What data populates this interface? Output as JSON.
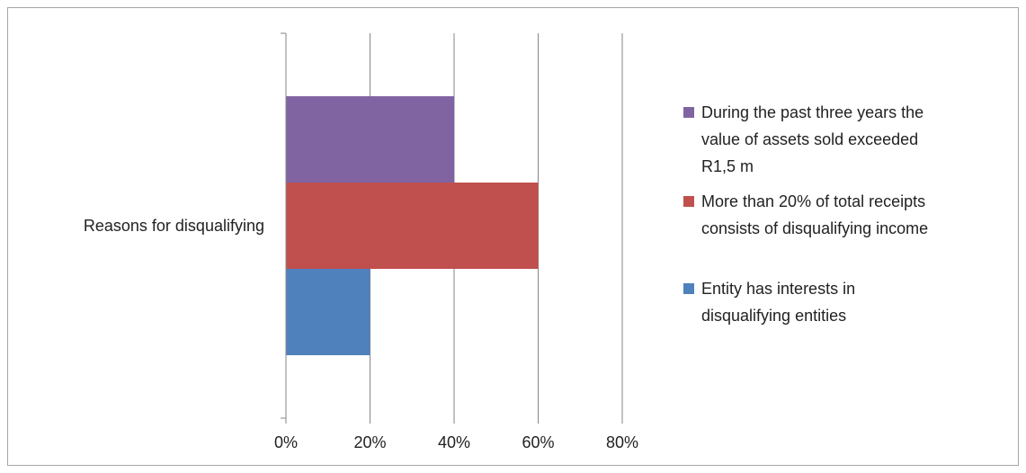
{
  "chart_data": {
    "type": "bar",
    "orientation": "horizontal",
    "categories": [
      "Reasons for disqualifying"
    ],
    "series": [
      {
        "name": "Entity has interests in disqualifying entities",
        "legend_lines": [
          "Entity has interests in",
          "disqualifying entities"
        ],
        "values": [
          0.2
        ],
        "color": "#4F81BD"
      },
      {
        "name": "More than 20% of total receipts consists of disqualifying income",
        "legend_lines": [
          "More than 20% of total receipts",
          "consists of disqualifying income"
        ],
        "values": [
          0.6
        ],
        "color": "#C0504D"
      },
      {
        "name": "During the past three years the value of assets sold exceeded R1,5 m",
        "legend_lines": [
          "During the past three years the",
          "value of assets sold exceeded",
          "R1,5 m"
        ],
        "values": [
          0.4
        ],
        "color": "#8064A2"
      }
    ],
    "x_ticks": [
      0,
      0.2,
      0.4,
      0.6,
      0.8
    ],
    "x_tick_labels": [
      "0%",
      "20%",
      "40%",
      "60%",
      "80%"
    ],
    "xlim": [
      0,
      0.8
    ],
    "grid": true,
    "legend_position": "right",
    "title": "",
    "xlabel": "",
    "ylabel": ""
  }
}
